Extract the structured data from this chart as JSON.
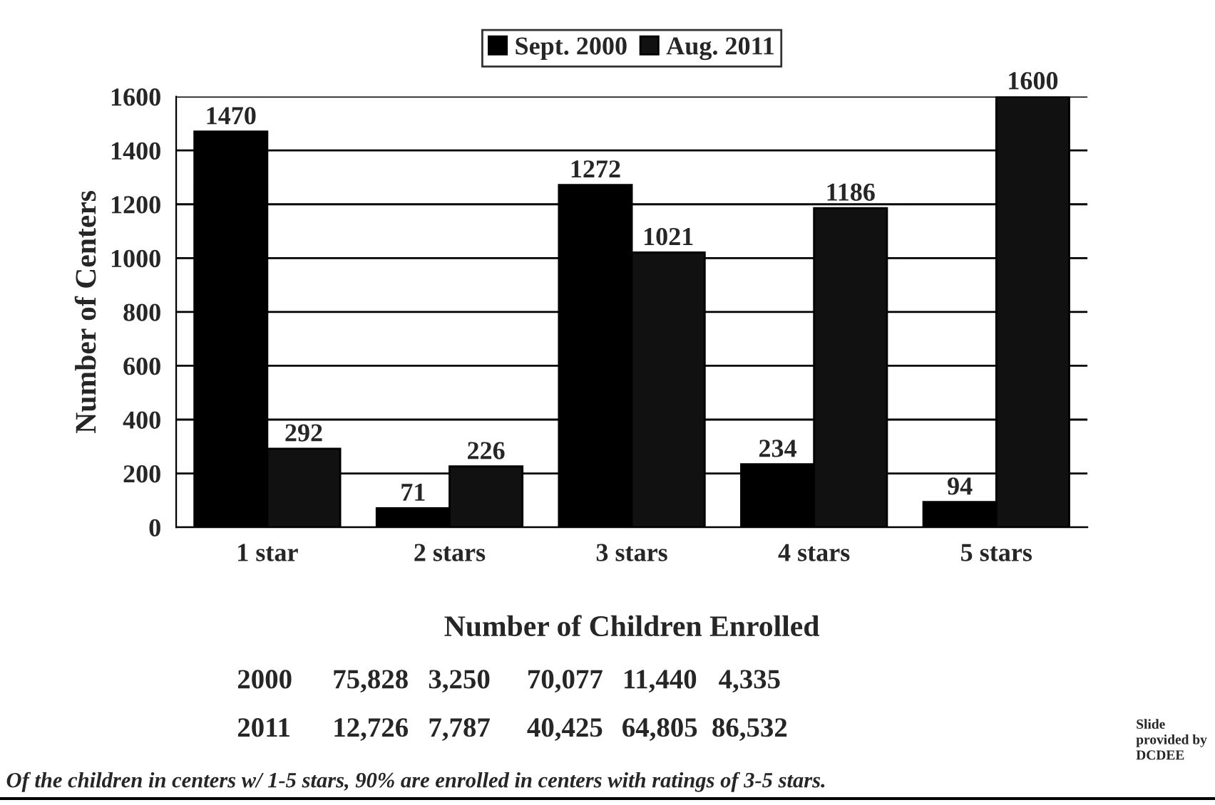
{
  "chart_data": {
    "type": "bar",
    "ylabel": "Number of Centers",
    "categories": [
      "1 star",
      "2 stars",
      "3 stars",
      "4 stars",
      "5 stars"
    ],
    "series": [
      {
        "name": "Sept. 2000",
        "color": "#000000",
        "values": [
          1470,
          71,
          1272,
          234,
          94
        ]
      },
      {
        "name": "Aug. 2011",
        "color": "#111111",
        "values": [
          292,
          226,
          1021,
          1186,
          1600
        ]
      }
    ],
    "ylim": [
      0,
      1600
    ],
    "yticks": [
      0,
      200,
      400,
      600,
      800,
      1000,
      1200,
      1400,
      1600
    ],
    "grid": "y",
    "legend": "top",
    "data_labels": true,
    "annotations": [
      "Number of Children Enrolled",
      "2000",
      "75,828",
      "3,250",
      "70,077",
      "11,440",
      "4,335",
      "2011",
      "12,726",
      "7,787",
      "40,425",
      "64,805",
      "86,532",
      "Slide provided by DCDEE",
      "Of the children in centers w/ 1-5 stars, 90% are enrolled in centers with ratings of 3-5 stars."
    ]
  }
}
